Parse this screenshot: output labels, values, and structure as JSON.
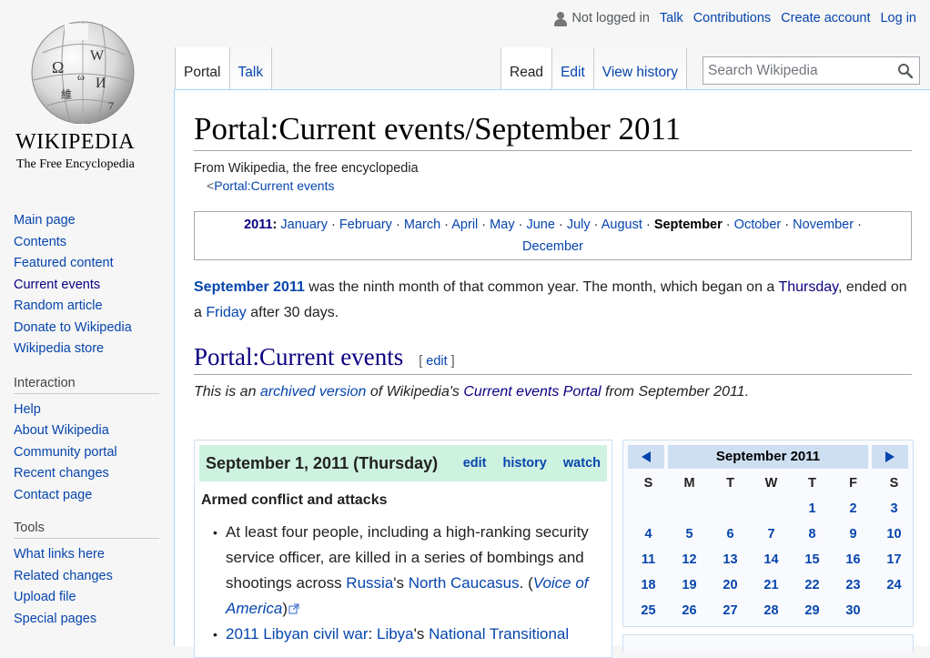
{
  "logo": {
    "wordmark": "WIKIPEDIA",
    "tagline": "The Free Encyclopedia"
  },
  "sidebar": {
    "navigation": [
      "Main page",
      "Contents",
      "Featured content",
      "Current events",
      "Random article",
      "Donate to Wikipedia",
      "Wikipedia store"
    ],
    "interaction": {
      "title": "Interaction",
      "items": [
        "Help",
        "About Wikipedia",
        "Community portal",
        "Recent changes",
        "Contact page"
      ]
    },
    "tools": {
      "title": "Tools",
      "items": [
        "What links here",
        "Related changes",
        "Upload file",
        "Special pages"
      ]
    }
  },
  "personal": {
    "not_logged": "Not logged in",
    "talk": "Talk",
    "contributions": "Contributions",
    "create_account": "Create account",
    "login": "Log in"
  },
  "tabs": {
    "portal": "Portal",
    "talk": "Talk",
    "read": "Read",
    "edit": "Edit",
    "history": "View history"
  },
  "search": {
    "placeholder": "Search Wikipedia"
  },
  "page": {
    "title": "Portal:Current events/September 2011",
    "site_sub": "From Wikipedia, the free encyclopedia",
    "content_sub_prefix": "<",
    "content_sub_link": "Portal:Current events",
    "months_year": "2011",
    "months": [
      "January",
      "February",
      "March",
      "April",
      "May",
      "June",
      "July",
      "August",
      "September",
      "October",
      "November",
      "December"
    ],
    "current_month": "September",
    "intro": {
      "bold_link": "September 2011",
      "text1": " was the ninth month of that common year. The month, which began on a ",
      "link1": "Thursday",
      "text2": ", ended on a ",
      "link2": "Friday",
      "text3": " after 30 days."
    },
    "section_title": "Portal:Current events",
    "section_edit": "edit",
    "archived": {
      "t1": "This is an ",
      "l1": "archived version",
      "t2": " of Wikipedia's ",
      "l2": "Current events Portal",
      "t3": " from September 2011."
    }
  },
  "event": {
    "date": "September 1, 2011 (Thursday)",
    "links": [
      "edit",
      "history",
      "watch"
    ],
    "category": "Armed conflict and attacks",
    "item1": {
      "t1": "At least four people, including a high-ranking security service officer, are killed in a series of bombings and shootings across ",
      "l1": "Russia",
      "t2": "'s ",
      "l2": "North Caucasus",
      "t3": ". (",
      "src": "Voice of America",
      "t4": ")"
    },
    "item2": {
      "l1": "2011 Libyan civil war",
      "t1": ": ",
      "l2": "Libya",
      "t2": "'s ",
      "l3": "National Transitional"
    }
  },
  "calendar": {
    "title": "September 2011",
    "days_of_week": [
      "S",
      "M",
      "T",
      "W",
      "T",
      "F",
      "S"
    ],
    "first_weekday": 4,
    "days_in_month": 30
  }
}
